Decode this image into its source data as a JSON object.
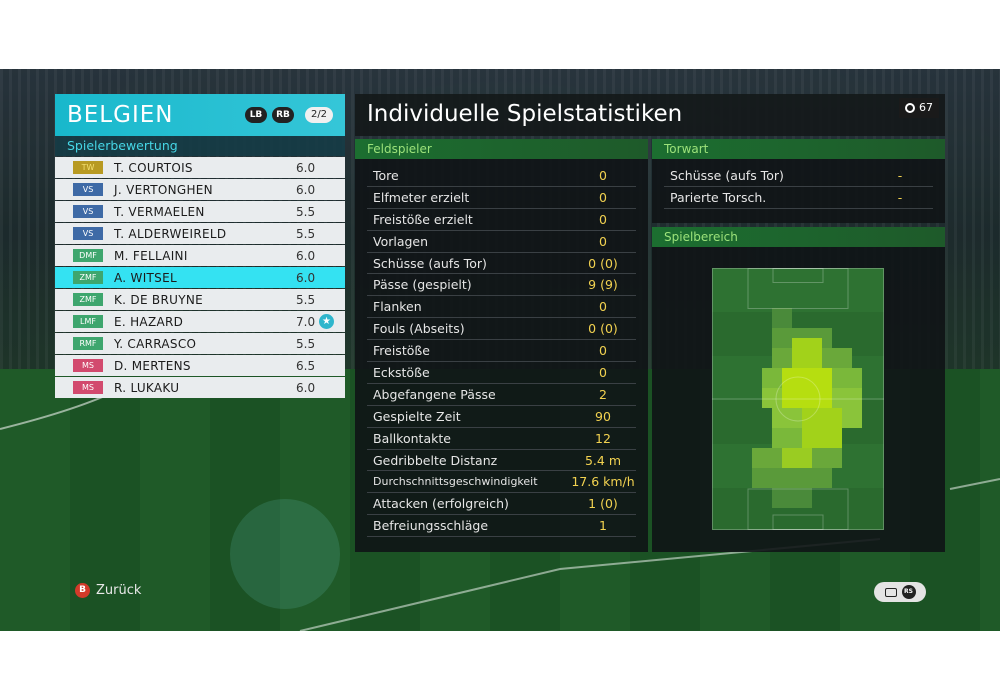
{
  "team": {
    "name": "BELGIEN",
    "lb_label": "LB",
    "rb_label": "RB",
    "page": "2/2"
  },
  "rating_section": {
    "title": "Spielerbewertung"
  },
  "players": [
    {
      "pos": "TW",
      "name": "T. COURTOIS",
      "rating": "6.0"
    },
    {
      "pos": "VS",
      "name": "J. VERTONGHEN",
      "rating": "6.0"
    },
    {
      "pos": "VS",
      "name": "T. VERMAELEN",
      "rating": "5.5"
    },
    {
      "pos": "VS",
      "name": "T. ALDERWEIRELD",
      "rating": "5.5"
    },
    {
      "pos": "DMF",
      "name": "M. FELLAINI",
      "rating": "6.0"
    },
    {
      "pos": "ZMF",
      "name": "A. WITSEL",
      "rating": "6.0"
    },
    {
      "pos": "ZMF",
      "name": "K. DE BRUYNE",
      "rating": "5.5"
    },
    {
      "pos": "LMF",
      "name": "E. HAZARD",
      "rating": "7.0"
    },
    {
      "pos": "RMF",
      "name": "Y. CARRASCO",
      "rating": "5.5"
    },
    {
      "pos": "MS",
      "name": "D. MERTENS",
      "rating": "6.5"
    },
    {
      "pos": "MS",
      "name": "R. LUKAKU",
      "rating": "6.0"
    }
  ],
  "selected_player_index": 5,
  "mvp_player_index": 7,
  "stats": {
    "title": "Individuelle Spielstatistiken",
    "timer": "67",
    "field_header": "Feldspieler",
    "field_stats": [
      {
        "label": "Tore",
        "value": "0"
      },
      {
        "label": "Elfmeter erzielt",
        "value": "0"
      },
      {
        "label": "Freistöße erzielt",
        "value": "0"
      },
      {
        "label": "Vorlagen",
        "value": "0"
      },
      {
        "label": "Schüsse (aufs Tor)",
        "value": "0 (0)"
      },
      {
        "label": "Pässe (gespielt)",
        "value": "9 (9)"
      },
      {
        "label": "Flanken",
        "value": "0"
      },
      {
        "label": "Fouls (Abseits)",
        "value": "0 (0)"
      },
      {
        "label": "Freistöße",
        "value": "0"
      },
      {
        "label": "Eckstöße",
        "value": "0"
      },
      {
        "label": "Abgefangene Pässe",
        "value": "2"
      },
      {
        "label": "Gespielte Zeit",
        "value": "90"
      },
      {
        "label": "Ballkontakte",
        "value": "12"
      },
      {
        "label": "Gedribbelte Distanz",
        "value": "5.4 m"
      },
      {
        "label": "Durchschnittsgeschwindigkeit",
        "value": "17.6 km/h"
      },
      {
        "label": "Attacken (erfolgreich)",
        "value": "1 (0)"
      },
      {
        "label": "Befreiungsschläge",
        "value": "1"
      }
    ],
    "gk_header": "Torwart",
    "gk_stats": [
      {
        "label": "Schüsse (aufs Tor)",
        "value": "-"
      },
      {
        "label": "Parierte Torsch.",
        "value": "-"
      }
    ],
    "area_header": "Spielbereich"
  },
  "footer": {
    "b_label": "B",
    "back_label": "Zurück",
    "rs_label": "RS"
  },
  "colors": {
    "accent": "#34e2f2",
    "stat_value": "#f2d250",
    "section_green": "#9ce27a"
  }
}
